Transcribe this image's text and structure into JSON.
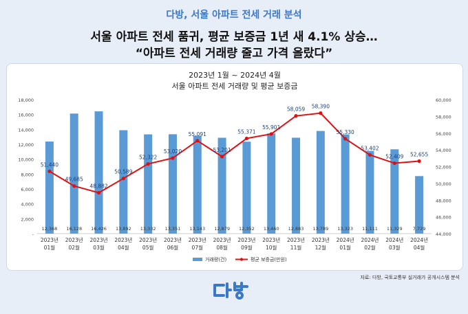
{
  "header": {
    "brand_title": "다방, 서울 아파트 전세 거래 분석",
    "headline_1": "서울 아파트 전세 품귀, 평균 보증금 1년 새 4.1% 상승…",
    "headline_2": "“아파트 전세 거래량 줄고 가격 올랐다”"
  },
  "source": "자료: 다방, 국토교통부 실거래가 공개시스템 분석",
  "colors": {
    "bar": "#5b9bd5",
    "line": "#e01010",
    "brand": "#3a78c8",
    "background": "#e8eef8"
  },
  "chart_data": {
    "type": "bar",
    "title": "2023년 1월 ~ 2024년 4월",
    "subtitle": "서울 아파트 전세 거래량 및 평균 보증금",
    "categories": [
      [
        "2023년",
        "01월"
      ],
      [
        "2023년",
        "02월"
      ],
      [
        "2023년",
        "03월"
      ],
      [
        "2023년",
        "04월"
      ],
      [
        "2023년",
        "05월"
      ],
      [
        "2023년",
        "06월"
      ],
      [
        "2023년",
        "07월"
      ],
      [
        "2023년",
        "08월"
      ],
      [
        "2023년",
        "09월"
      ],
      [
        "2023년",
        "10월"
      ],
      [
        "2023년",
        "11월"
      ],
      [
        "2023년",
        "12월"
      ],
      [
        "2024년",
        "01월"
      ],
      [
        "2024년",
        "02월"
      ],
      [
        "2024년",
        "03월"
      ],
      [
        "2024년",
        "04월"
      ]
    ],
    "series": [
      {
        "name": "거래량(건)",
        "type": "bar",
        "axis": "left",
        "values": [
          12368,
          16128,
          16426,
          13892,
          13332,
          13351,
          13143,
          12879,
          12352,
          13460,
          12883,
          13789,
          13323,
          11111,
          11329,
          7729
        ],
        "labels": [
          "12,368",
          "16,128",
          "16,426",
          "13,892",
          "13,332",
          "13,351",
          "13,143",
          "12,879",
          "12,352",
          "13,460",
          "12,883",
          "13,789",
          "13,323",
          "11,111",
          "11,329",
          "7,729"
        ]
      },
      {
        "name": "평균 보증금(만원)",
        "type": "line",
        "axis": "right",
        "values": [
          51440,
          49685,
          48882,
          50589,
          52322,
          53020,
          55091,
          53201,
          55371,
          55901,
          58059,
          58390,
          55330,
          53402,
          52409,
          52655
        ],
        "labels": [
          "51,440",
          "49,685",
          "48,882",
          "50,589",
          "52,322",
          "53,020",
          "55,091",
          "53,201",
          "55,371",
          "55,901",
          "58,059",
          "58,390",
          "55,330",
          "53,402",
          "52,409",
          "52,655"
        ]
      }
    ],
    "left_axis": {
      "ylim": [
        0,
        18000
      ],
      "ticks": [
        0,
        2000,
        4000,
        6000,
        8000,
        10000,
        12000,
        14000,
        16000,
        18000
      ],
      "tick_labels": [
        "-",
        "2,000",
        "4,000",
        "6,000",
        "8,000",
        "10,000",
        "12,000",
        "14,000",
        "16,000",
        "18,000"
      ]
    },
    "right_axis": {
      "ylim": [
        44000,
        60000
      ],
      "ticks": [
        44000,
        46000,
        48000,
        50000,
        52000,
        54000,
        56000,
        58000,
        60000
      ],
      "tick_labels": [
        "44,000",
        "46,000",
        "48,000",
        "50,000",
        "52,000",
        "54,000",
        "56,000",
        "58,000",
        "60,000"
      ]
    },
    "legend_position": "bottom",
    "grid": false
  }
}
